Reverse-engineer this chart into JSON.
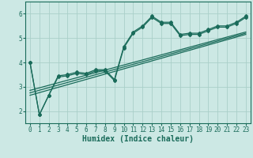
{
  "title": "",
  "xlabel": "Humidex (Indice chaleur)",
  "ylabel": "",
  "xlim": [
    -0.5,
    23.5
  ],
  "ylim": [
    1.5,
    6.5
  ],
  "yticks": [
    2,
    3,
    4,
    5,
    6
  ],
  "xticks": [
    0,
    1,
    2,
    3,
    4,
    5,
    6,
    7,
    8,
    9,
    10,
    11,
    12,
    13,
    14,
    15,
    16,
    17,
    18,
    19,
    20,
    21,
    22,
    23
  ],
  "bg_color": "#cce8e4",
  "line_color": "#1a6b5a",
  "grid_color": "#aacfc9",
  "curve1_x": [
    0,
    1,
    2,
    3,
    4,
    5,
    6,
    7,
    8,
    9,
    10,
    11,
    12,
    13,
    14,
    15,
    16,
    17,
    18,
    19,
    20,
    21,
    22,
    23
  ],
  "curve1_y": [
    4.0,
    1.85,
    2.65,
    3.45,
    3.5,
    3.6,
    3.55,
    3.7,
    3.7,
    3.3,
    4.65,
    5.25,
    5.5,
    5.9,
    5.65,
    5.65,
    5.15,
    5.2,
    5.2,
    5.35,
    5.5,
    5.5,
    5.65,
    5.9
  ],
  "curve2_x": [
    0,
    1,
    2,
    3,
    4,
    5,
    6,
    7,
    8,
    9,
    10,
    11,
    12,
    13,
    14,
    15,
    16,
    17,
    18,
    19,
    20,
    21,
    22,
    23
  ],
  "curve2_y": [
    4.0,
    1.85,
    2.65,
    3.4,
    3.45,
    3.55,
    3.5,
    3.65,
    3.65,
    3.25,
    4.6,
    5.2,
    5.45,
    5.85,
    5.6,
    5.6,
    5.1,
    5.15,
    5.15,
    5.3,
    5.45,
    5.45,
    5.6,
    5.85
  ],
  "reg_lines": [
    {
      "x": [
        0,
        23
      ],
      "y": [
        2.65,
        5.15
      ]
    },
    {
      "x": [
        0,
        23
      ],
      "y": [
        2.75,
        5.2
      ]
    },
    {
      "x": [
        0,
        23
      ],
      "y": [
        2.85,
        5.25
      ]
    }
  ]
}
